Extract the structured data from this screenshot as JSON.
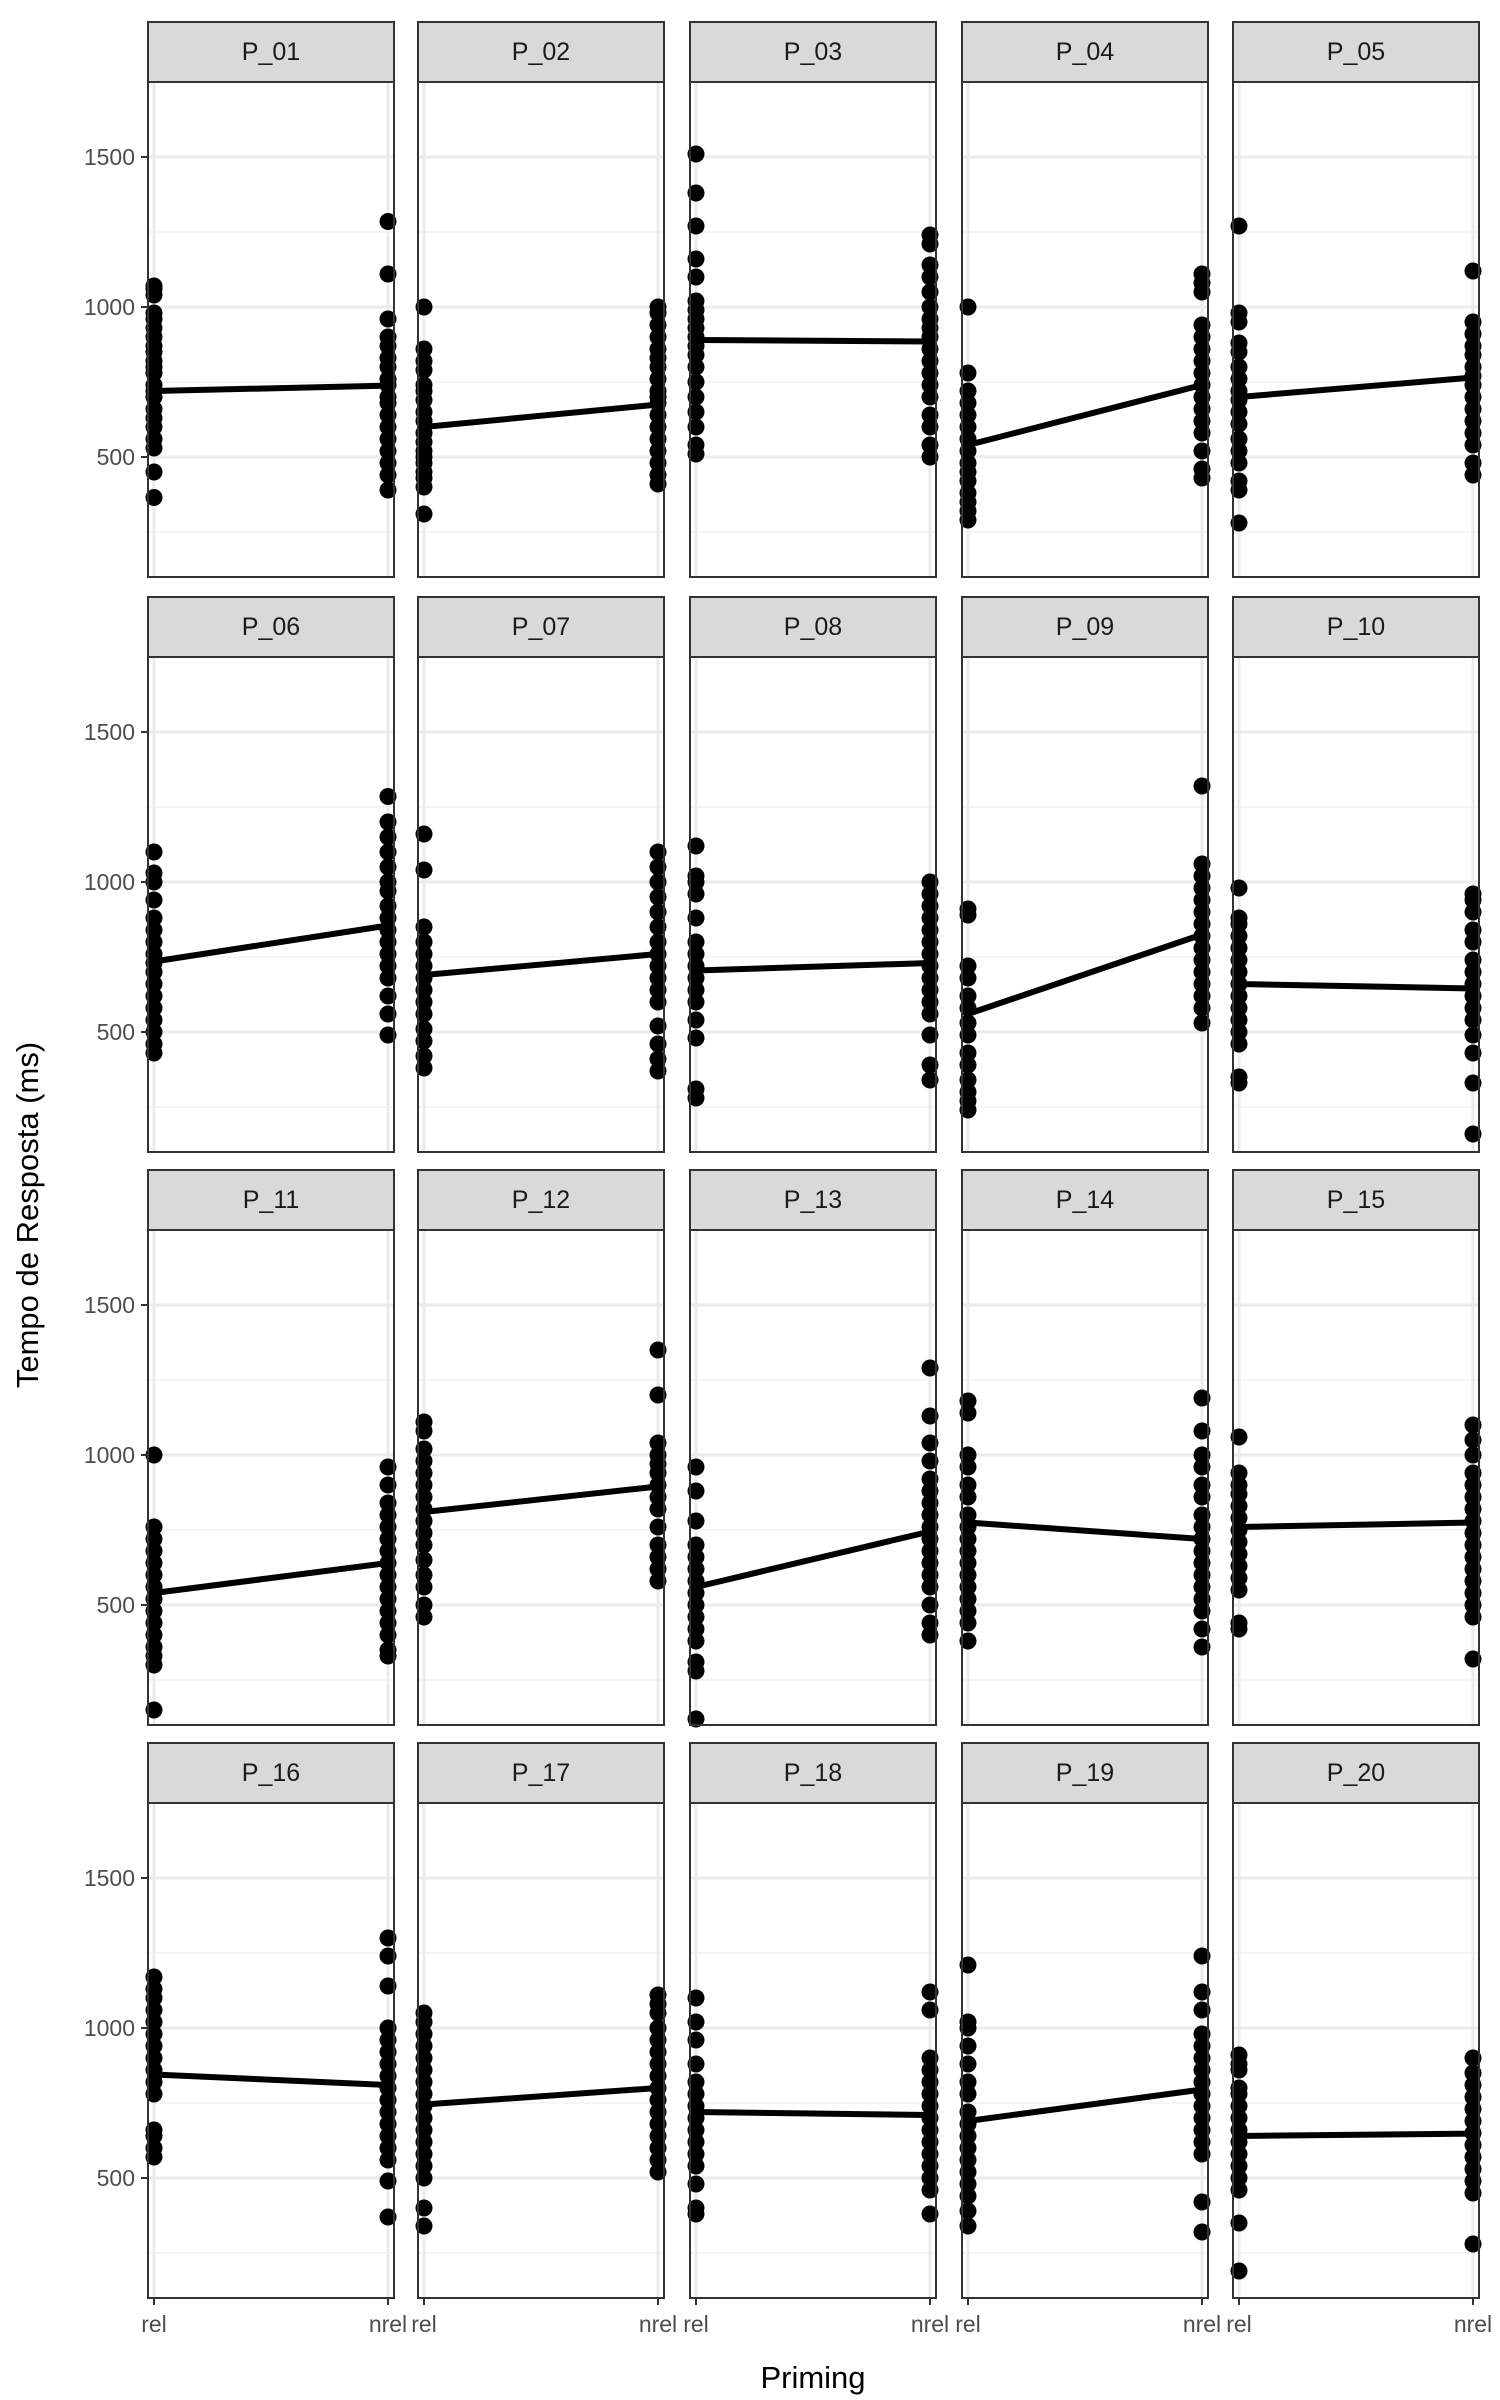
{
  "chart_data": {
    "type": "scatter",
    "xlabel": "Priming",
    "ylabel": "Tempo de Resposta (ms)",
    "categories": [
      "rel",
      "nrel"
    ],
    "y_ticks": [
      500,
      1000,
      1500
    ],
    "ylim": [
      100,
      1750
    ],
    "grid": true,
    "line_series": "means connected across Priming levels",
    "panels": [
      {
        "label": "P_01",
        "means": [
          720,
          738
        ],
        "rel": [
          365,
          450,
          530,
          560,
          600,
          630,
          660,
          700,
          720,
          740,
          780,
          800,
          820,
          850,
          870,
          900,
          930,
          960,
          980,
          1040,
          1060,
          1070
        ],
        "nrel": [
          390,
          440,
          480,
          520,
          560,
          600,
          640,
          680,
          700,
          740,
          760,
          800,
          830,
          870,
          900,
          960,
          1110,
          1285
        ]
      },
      {
        "label": "P_02",
        "means": [
          600,
          675
        ],
        "rel": [
          310,
          400,
          430,
          450,
          480,
          500,
          520,
          550,
          580,
          620,
          650,
          690,
          720,
          740,
          790,
          820,
          860,
          1000
        ],
        "nrel": [
          410,
          440,
          480,
          520,
          560,
          600,
          640,
          680,
          700,
          720,
          760,
          800,
          830,
          860,
          900,
          940,
          980,
          1000
        ]
      },
      {
        "label": "P_03",
        "means": [
          890,
          885
        ],
        "rel": [
          510,
          540,
          600,
          650,
          700,
          750,
          800,
          840,
          870,
          900,
          930,
          960,
          990,
          1020,
          1100,
          1160,
          1270,
          1380,
          1510
        ],
        "nrel": [
          500,
          540,
          600,
          640,
          700,
          740,
          780,
          820,
          860,
          900,
          930,
          960,
          1000,
          1050,
          1100,
          1140,
          1210,
          1240
        ]
      },
      {
        "label": "P_04",
        "means": [
          540,
          740
        ],
        "rel": [
          290,
          320,
          350,
          380,
          420,
          450,
          480,
          520,
          560,
          600,
          640,
          680,
          720,
          780,
          1000
        ],
        "nrel": [
          430,
          460,
          520,
          580,
          620,
          660,
          700,
          740,
          780,
          820,
          860,
          900,
          940,
          1050,
          1080,
          1110
        ]
      },
      {
        "label": "P_05",
        "means": [
          700,
          765
        ],
        "rel": [
          280,
          390,
          420,
          480,
          520,
          560,
          610,
          650,
          690,
          720,
          760,
          800,
          850,
          880,
          950,
          980,
          1270
        ],
        "nrel": [
          440,
          480,
          540,
          580,
          620,
          660,
          700,
          740,
          770,
          800,
          840,
          870,
          910,
          950,
          1120
        ]
      },
      {
        "label": "P_06",
        "means": [
          735,
          855
        ],
        "rel": [
          430,
          460,
          500,
          540,
          580,
          620,
          660,
          700,
          730,
          760,
          800,
          840,
          880,
          940,
          1000,
          1030,
          1100
        ],
        "nrel": [
          490,
          560,
          620,
          680,
          720,
          760,
          800,
          840,
          880,
          920,
          970,
          1000,
          1050,
          1100,
          1150,
          1200,
          1285
        ]
      },
      {
        "label": "P_07",
        "means": [
          690,
          760
        ],
        "rel": [
          380,
          420,
          470,
          510,
          560,
          600,
          640,
          680,
          720,
          760,
          800,
          850,
          1040,
          1160
        ],
        "nrel": [
          370,
          410,
          460,
          520,
          600,
          640,
          680,
          720,
          760,
          800,
          850,
          900,
          950,
          1000,
          1050,
          1100
        ]
      },
      {
        "label": "P_08",
        "means": [
          705,
          730
        ],
        "rel": [
          280,
          310,
          480,
          540,
          600,
          640,
          680,
          720,
          760,
          800,
          880,
          960,
          1000,
          1020,
          1120
        ],
        "nrel": [
          340,
          390,
          490,
          560,
          600,
          640,
          680,
          720,
          760,
          800,
          840,
          880,
          920,
          960,
          1000
        ]
      },
      {
        "label": "P_09",
        "means": [
          560,
          825
        ],
        "rel": [
          240,
          270,
          300,
          340,
          390,
          430,
          490,
          530,
          580,
          620,
          680,
          720,
          890,
          910
        ],
        "nrel": [
          530,
          580,
          620,
          660,
          700,
          740,
          780,
          820,
          860,
          900,
          940,
          980,
          1020,
          1060,
          1320
        ]
      },
      {
        "label": "P_10",
        "means": [
          660,
          645
        ],
        "rel": [
          330,
          350,
          460,
          500,
          540,
          580,
          620,
          660,
          700,
          740,
          780,
          820,
          860,
          880,
          980
        ],
        "nrel": [
          160,
          330,
          430,
          490,
          540,
          580,
          620,
          660,
          700,
          740,
          800,
          840,
          900,
          940,
          960
        ]
      }
    ],
    "panels_rows_3_4": [
      {
        "label": "P_11",
        "means": [
          540,
          640
        ],
        "rel": [
          150,
          300,
          330,
          360,
          400,
          440,
          480,
          520,
          560,
          600,
          640,
          680,
          720,
          760,
          1000
        ],
        "nrel": [
          330,
          350,
          400,
          440,
          480,
          520,
          560,
          600,
          640,
          680,
          720,
          760,
          800,
          840,
          900,
          960
        ]
      },
      {
        "label": "P_12",
        "means": [
          810,
          895
        ],
        "rel": [
          460,
          500,
          560,
          600,
          650,
          700,
          740,
          780,
          820,
          860,
          900,
          940,
          980,
          1020,
          1080,
          1110
        ],
        "nrel": [
          580,
          620,
          660,
          700,
          760,
          820,
          860,
          900,
          940,
          970,
          1000,
          1040,
          1200,
          1350
        ]
      },
      {
        "label": "P_13",
        "means": [
          560,
          745
        ],
        "rel": [
          120,
          280,
          310,
          380,
          420,
          460,
          500,
          540,
          580,
          620,
          660,
          700,
          780,
          880,
          960
        ],
        "nrel": [
          400,
          440,
          500,
          560,
          600,
          640,
          680,
          720,
          760,
          800,
          840,
          880,
          920,
          980,
          1040,
          1130,
          1290
        ]
      },
      {
        "label": "P_14",
        "means": [
          775,
          720
        ],
        "rel": [
          380,
          440,
          480,
          520,
          560,
          600,
          640,
          680,
          720,
          760,
          800,
          860,
          900,
          960,
          1000,
          1140,
          1180
        ],
        "nrel": [
          360,
          420,
          480,
          520,
          560,
          600,
          640,
          680,
          720,
          760,
          800,
          860,
          900,
          960,
          1000,
          1080,
          1190
        ]
      },
      {
        "label": "P_15",
        "means": [
          760,
          775
        ],
        "rel": [
          420,
          440,
          550,
          590,
          630,
          670,
          710,
          750,
          790,
          830,
          870,
          900,
          940,
          1060
        ],
        "nrel": [
          320,
          460,
          500,
          540,
          580,
          620,
          660,
          700,
          740,
          780,
          820,
          860,
          900,
          940,
          1000,
          1050,
          1100
        ]
      },
      {
        "label": "P_16",
        "means": [
          845,
          810
        ],
        "rel": [
          570,
          600,
          640,
          660,
          780,
          820,
          860,
          900,
          940,
          980,
          1020,
          1060,
          1100,
          1130,
          1170
        ],
        "nrel": [
          370,
          490,
          560,
          600,
          640,
          680,
          720,
          760,
          800,
          840,
          880,
          920,
          960,
          1000,
          1140,
          1240,
          1300
        ]
      },
      {
        "label": "P_17",
        "means": [
          745,
          800
        ],
        "rel": [
          340,
          400,
          500,
          540,
          580,
          620,
          660,
          700,
          740,
          780,
          820,
          860,
          900,
          940,
          980,
          1020,
          1050
        ],
        "nrel": [
          520,
          560,
          600,
          640,
          680,
          720,
          760,
          800,
          840,
          880,
          920,
          960,
          1000,
          1050,
          1080,
          1110
        ]
      },
      {
        "label": "P_18",
        "means": [
          720,
          710
        ],
        "rel": [
          380,
          400,
          480,
          540,
          580,
          620,
          660,
          700,
          740,
          780,
          820,
          880,
          960,
          1020,
          1100
        ],
        "nrel": [
          380,
          460,
          500,
          540,
          580,
          620,
          660,
          700,
          740,
          780,
          820,
          860,
          900,
          1060,
          1120
        ]
      },
      {
        "label": "P_19",
        "means": [
          690,
          795
        ],
        "rel": [
          340,
          390,
          440,
          480,
          520,
          560,
          600,
          640,
          680,
          720,
          780,
          820,
          880,
          940,
          1000,
          1020,
          1210
        ],
        "nrel": [
          320,
          420,
          580,
          620,
          660,
          700,
          740,
          780,
          820,
          860,
          900,
          940,
          980,
          1060,
          1120,
          1240
        ]
      },
      {
        "label": "P_20",
        "means": [
          640,
          648
        ],
        "rel": [
          190,
          350,
          460,
          500,
          540,
          580,
          620,
          660,
          700,
          740,
          780,
          800,
          860,
          880,
          910
        ],
        "nrel": [
          280,
          450,
          490,
          530,
          570,
          610,
          650,
          690,
          730,
          770,
          810,
          850,
          900
        ]
      }
    ]
  }
}
